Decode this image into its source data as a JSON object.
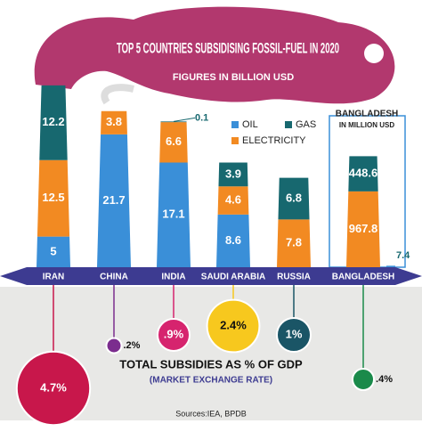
{
  "chart_data": [
    {
      "type": "bar",
      "stacked": true,
      "title": "TOP 5 COUNTRIES SUBSIDISING FOSSIL-FUEL IN 2020",
      "subtitle": "FIGURES IN BILLION USD",
      "categories": [
        "IRAN",
        "CHINA",
        "INDIA",
        "SAUDI ARABIA",
        "RUSSIA"
      ],
      "series": [
        {
          "name": "OIL",
          "color": "#3a8fd8",
          "values": [
            5.0,
            21.7,
            17.1,
            8.6,
            null
          ]
        },
        {
          "name": "ELECTRICITY",
          "color": "#f28a22",
          "values": [
            12.5,
            3.8,
            6.6,
            4.6,
            7.8
          ]
        },
        {
          "name": "GAS",
          "color": "#17686f",
          "values": [
            12.2,
            null,
            0.1,
            3.9,
            6.8
          ]
        }
      ],
      "ylim": [
        0,
        32
      ]
    },
    {
      "type": "bar",
      "stacked": true,
      "title": "BANGLADESH",
      "subtitle": "IN MILLION USD",
      "categories": [
        "BANGLADESH"
      ],
      "series": [
        {
          "color": "#3a8fd8",
          "values": [
            7.4
          ]
        },
        {
          "color": "#f28a22",
          "values": [
            967.8
          ]
        },
        {
          "color": "#17686f",
          "values": [
            448.6
          ]
        }
      ],
      "ylim": [
        0,
        2500
      ]
    },
    {
      "type": "bubble",
      "title": "TOTAL SUBSIDIES AS % OF GDP",
      "subtitle": "(MARKET EXCHANGE RATE)",
      "values": [
        4.7,
        0.2,
        0.9,
        2.4,
        1,
        0.4
      ],
      "value_labels": [
        "4.7%",
        ".2%",
        ".9%",
        "2.4%",
        "1%",
        ".4%"
      ],
      "colors": [
        "#c8174b",
        "#7b2d8e",
        "#d6246e",
        "#f7c81e",
        "#1a5566",
        "#1a8a4a"
      ],
      "source": "Sources:IEA, BPDB"
    }
  ]
}
